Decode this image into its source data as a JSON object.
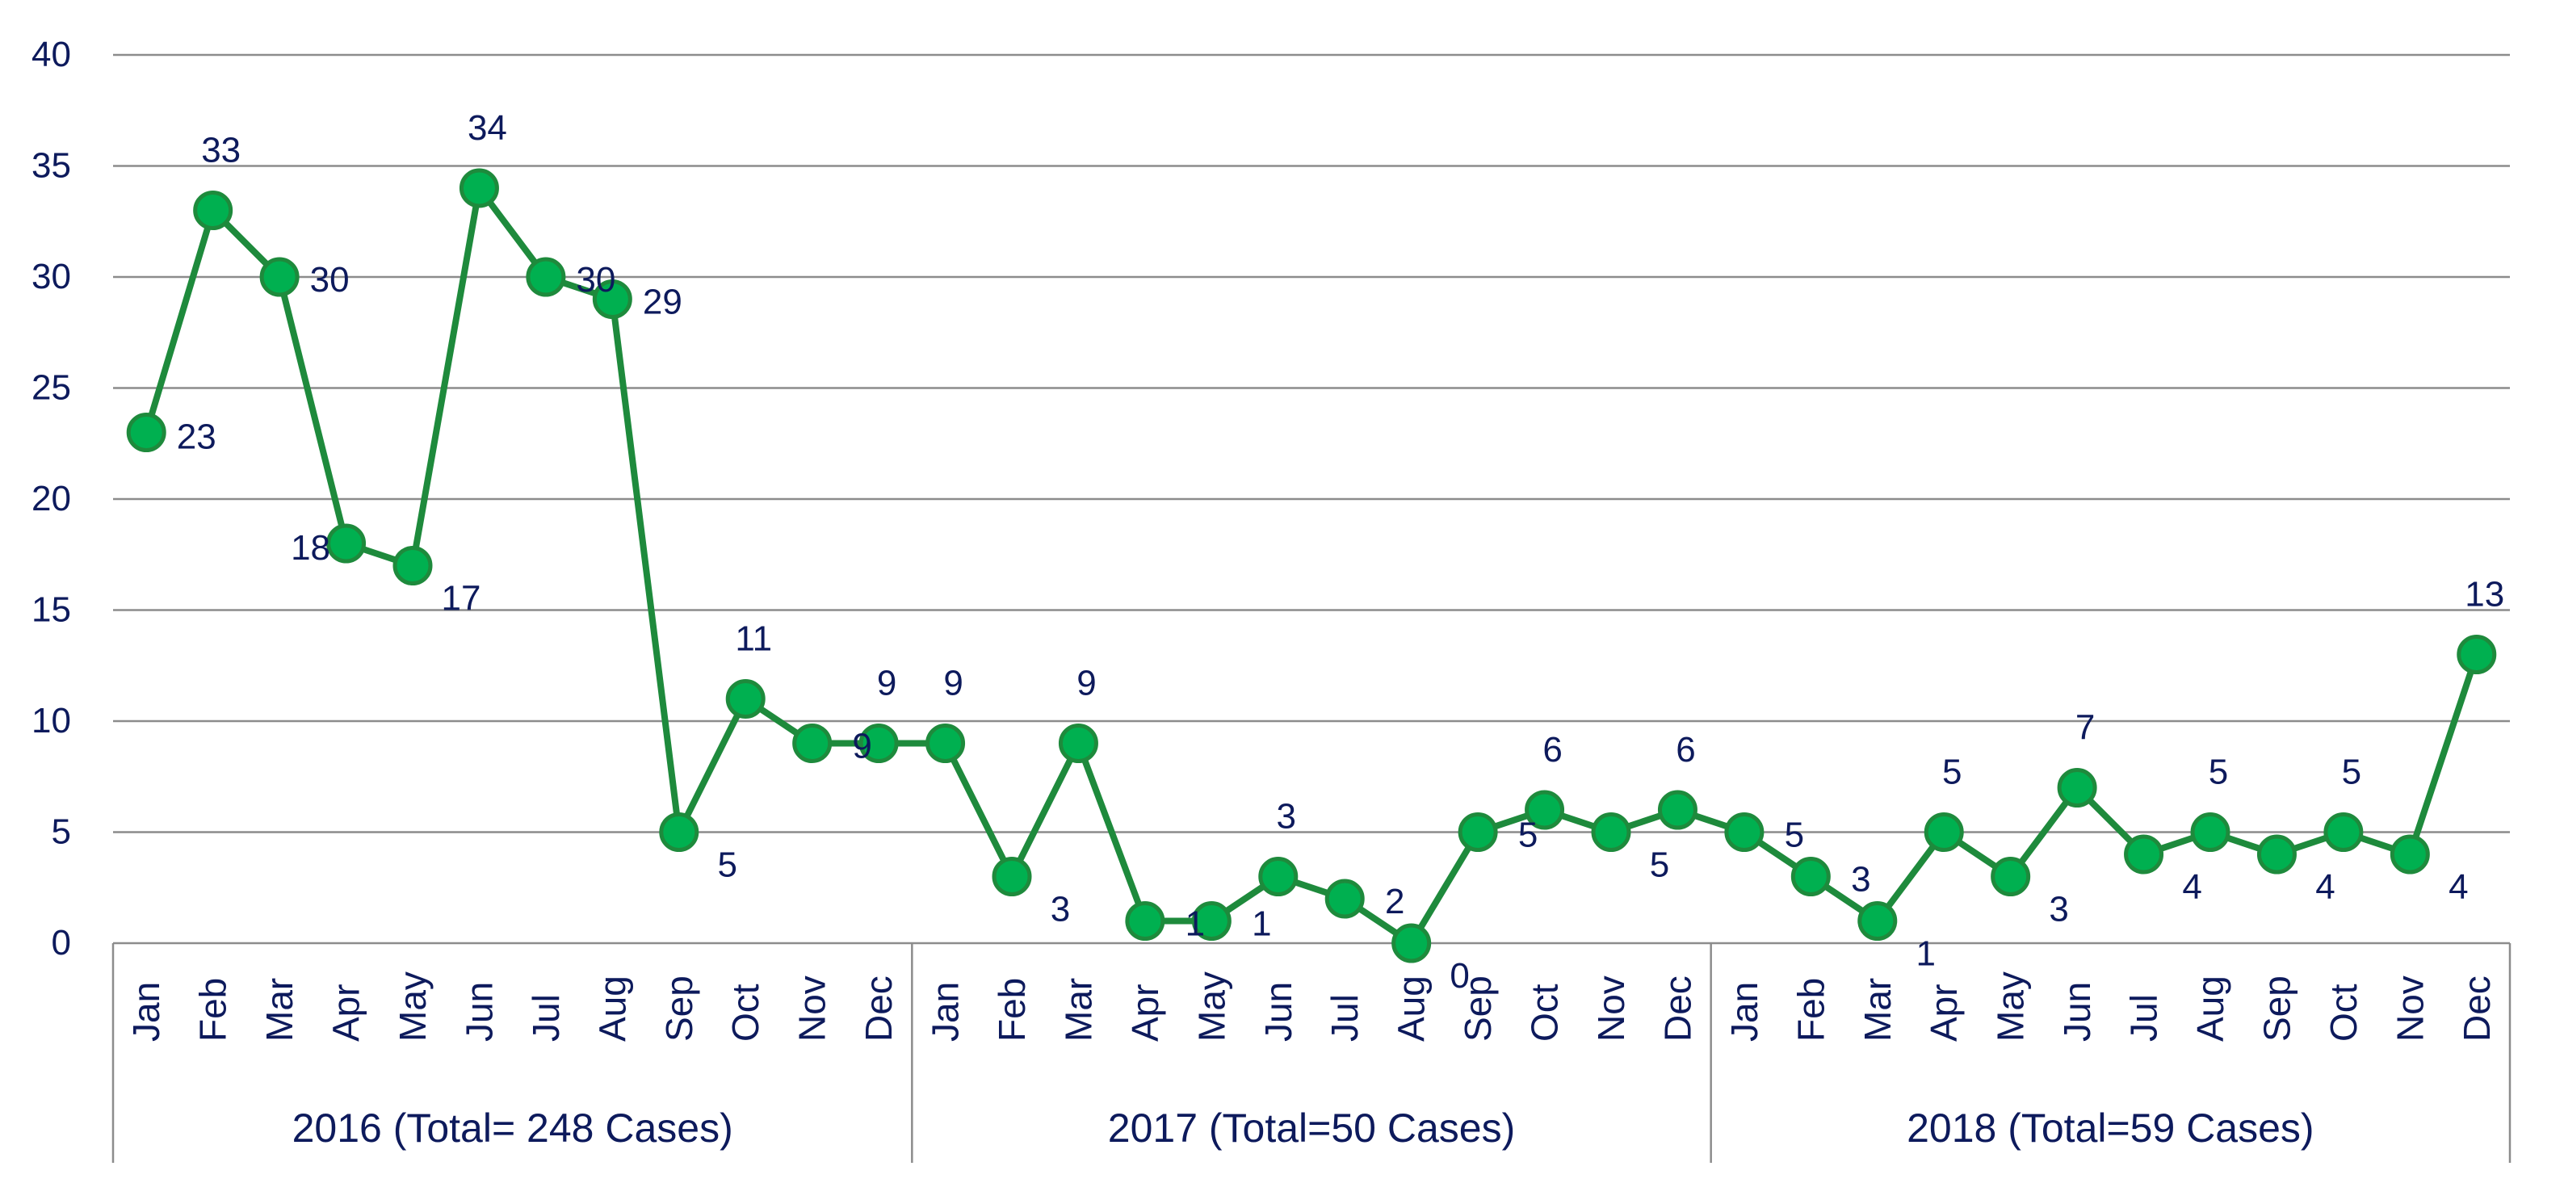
{
  "chart_data": {
    "type": "line",
    "title": "",
    "xlabel": "",
    "ylabel": "",
    "ylim": [
      0,
      40
    ],
    "yticks": [
      0,
      5,
      10,
      15,
      20,
      25,
      30,
      35,
      40
    ],
    "grid": true,
    "legend": "none",
    "colors": {
      "line": "#1e8a3c",
      "marker_fill": "#00b050",
      "marker_stroke": "#1e8a3c",
      "text": "#0d1a5c",
      "grid": "#8c8c8c",
      "axis": "#8c8c8c"
    },
    "groups": [
      {
        "label": "2016 (Total= 248 Cases)",
        "months": [
          "Jan",
          "Feb",
          "Mar",
          "Apr",
          "May",
          "Jun",
          "Jul",
          "Aug",
          "Sep",
          "Oct",
          "Nov",
          "Dec"
        ]
      },
      {
        "label": "2017 (Total=50 Cases)",
        "months": [
          "Jan",
          "Feb",
          "Mar",
          "Apr",
          "May",
          "Jun",
          "Jul",
          "Aug",
          "Sep",
          "Oct",
          "Nov",
          "Dec"
        ]
      },
      {
        "label": "2018 (Total=59 Cases)",
        "months": [
          "Jan",
          "Feb",
          "Mar",
          "Apr",
          "May",
          "Jun",
          "Jul",
          "Aug",
          "Sep",
          "Oct",
          "Nov",
          "Dec"
        ]
      }
    ],
    "series": [
      {
        "values": [
          23,
          33,
          30,
          18,
          17,
          34,
          30,
          29,
          5,
          11,
          9,
          9,
          9,
          3,
          9,
          1,
          1,
          3,
          2,
          0,
          5,
          6,
          5,
          6,
          5,
          3,
          1,
          5,
          3,
          7,
          4,
          5,
          4,
          5,
          4,
          13
        ]
      }
    ],
    "data_labels": [
      "23",
      "33",
      "30",
      "18",
      "17",
      "34",
      "30",
      "29",
      "5",
      "11",
      "9",
      "9",
      "9",
      "3",
      "9",
      "1",
      "1",
      "3",
      "2",
      "0",
      "5",
      "6",
      "5",
      "6",
      "5",
      "3",
      "1",
      "5",
      "3",
      "7",
      "4",
      "5",
      "4",
      "5",
      "4",
      "13"
    ]
  }
}
